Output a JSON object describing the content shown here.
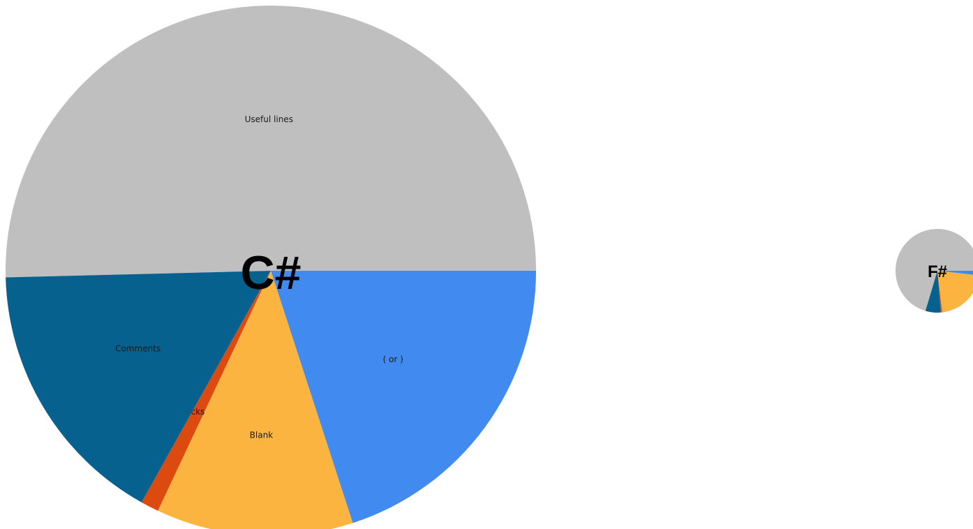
{
  "chart_data": [
    {
      "type": "pie",
      "title": "C#",
      "categories": [
        "Useful lines",
        "( or )",
        "Blank",
        "Null checks",
        "Comments"
      ],
      "values": [
        50.4,
        20.0,
        12.0,
        1.1,
        16.5
      ],
      "colors": [
        "#bfbfbf",
        "#418bf0",
        "#fbb440",
        "#dd4a0f",
        "#07618f"
      ],
      "labels_shown": true
    },
    {
      "type": "pie",
      "title": "F#",
      "categories": [
        "Useful lines",
        "( or )",
        "Blank",
        "Null checks",
        "Comments"
      ],
      "values": [
        70.4,
        1.8,
        21.4,
        0.5,
        5.9
      ],
      "colors": [
        "#bfbfbf",
        "#418bf0",
        "#fbb440",
        "#dd4a0f",
        "#07618f"
      ],
      "labels_shown": false
    }
  ]
}
